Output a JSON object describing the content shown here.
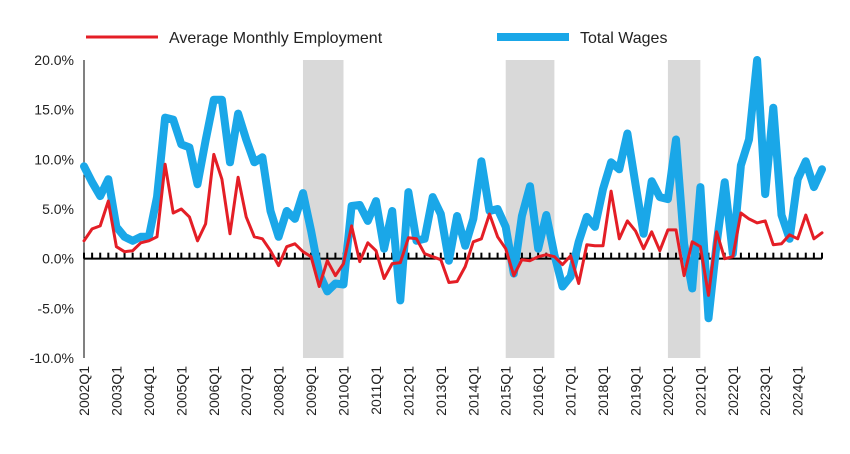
{
  "chart_data": {
    "type": "line",
    "title": "",
    "xlabel": "",
    "ylabel": "",
    "ylim": [
      -0.1,
      0.2
    ],
    "y_ticks": [
      "20.0%",
      "15.0%",
      "10.0%",
      "5.0%",
      "0.0%",
      "-5.0%",
      "-10.0%"
    ],
    "y_tick_values": [
      0.2,
      0.15,
      0.1,
      0.05,
      0.0,
      -0.05,
      -0.1
    ],
    "x_start": "2002Q1",
    "x_end": "2024Q4",
    "x_tick_labels": [
      "2002Q1",
      "2003Q1",
      "2004Q1",
      "2005Q1",
      "2006Q1",
      "2007Q1",
      "2008Q1",
      "2009Q1",
      "2010Q1",
      "2011Q1",
      "2012Q1",
      "2013Q1",
      "2014Q1",
      "2015Q1",
      "2016Q1",
      "2017Q1",
      "2018Q1",
      "2019Q1",
      "2020Q1",
      "2021Q1",
      "2022Q1",
      "2023Q1",
      "2024Q1"
    ],
    "legend_position": "top",
    "grid": false,
    "shaded_periods": [
      {
        "start": "2008Q4",
        "end": "2010Q1"
      },
      {
        "start": "2015Q1",
        "end": "2016Q3"
      },
      {
        "start": "2020Q1",
        "end": "2021Q1"
      }
    ],
    "series": [
      {
        "name": "Average Monthly Employment",
        "color": "#e41e26",
        "values": [
          0.018,
          0.03,
          0.033,
          0.058,
          0.012,
          0.007,
          0.008,
          0.016,
          0.018,
          0.022,
          0.095,
          0.046,
          0.05,
          0.042,
          0.018,
          0.035,
          0.105,
          0.08,
          0.025,
          0.082,
          0.042,
          0.022,
          0.02,
          0.008,
          -0.007,
          0.012,
          0.015,
          0.007,
          0.002,
          -0.028,
          -0.002,
          -0.017,
          -0.005,
          0.033,
          -0.003,
          0.016,
          0.008,
          -0.02,
          -0.005,
          -0.004,
          0.021,
          0.02,
          0.005,
          0.002,
          -0.001,
          -0.024,
          -0.023,
          -0.008,
          0.017,
          0.02,
          0.045,
          0.022,
          0.01,
          -0.017,
          -0.001,
          -0.002,
          0.002,
          0.004,
          0.002,
          -0.006,
          0.003,
          -0.025,
          0.014,
          0.013,
          0.013,
          0.068,
          0.02,
          0.038,
          0.028,
          0.01,
          0.027,
          0.008,
          0.029,
          0.029,
          -0.017,
          0.017,
          0.012,
          -0.037,
          0.027,
          0.0,
          0.002,
          0.046,
          0.04,
          0.036,
          0.038,
          0.014,
          0.015,
          0.024,
          0.02,
          0.044,
          0.02,
          0.026
        ]
      },
      {
        "name": "Total Wages",
        "color": "#1aa7e8",
        "values": [
          0.093,
          0.077,
          0.063,
          0.08,
          0.032,
          0.022,
          0.018,
          0.022,
          0.022,
          0.062,
          0.142,
          0.14,
          0.115,
          0.112,
          0.075,
          0.119,
          0.16,
          0.16,
          0.097,
          0.146,
          0.12,
          0.097,
          0.102,
          0.048,
          0.022,
          0.048,
          0.04,
          0.066,
          0.028,
          -0.015,
          -0.033,
          -0.025,
          -0.026,
          0.053,
          0.054,
          0.038,
          0.058,
          0.01,
          0.048,
          -0.042,
          0.067,
          0.018,
          0.02,
          0.062,
          0.045,
          -0.002,
          0.043,
          0.013,
          0.04,
          0.098,
          0.048,
          0.05,
          0.032,
          -0.015,
          0.043,
          0.073,
          0.01,
          0.044,
          0.004,
          -0.028,
          -0.018,
          0.017,
          0.042,
          0.032,
          0.07,
          0.097,
          0.09,
          0.126,
          0.075,
          0.025,
          0.078,
          0.062,
          0.06,
          0.12,
          0.015,
          -0.03,
          0.072,
          -0.06,
          0.015,
          0.077,
          0.005,
          0.094,
          0.12,
          0.2,
          0.065,
          0.152,
          0.044,
          0.02,
          0.08,
          0.098,
          0.072,
          0.09
        ]
      }
    ]
  }
}
